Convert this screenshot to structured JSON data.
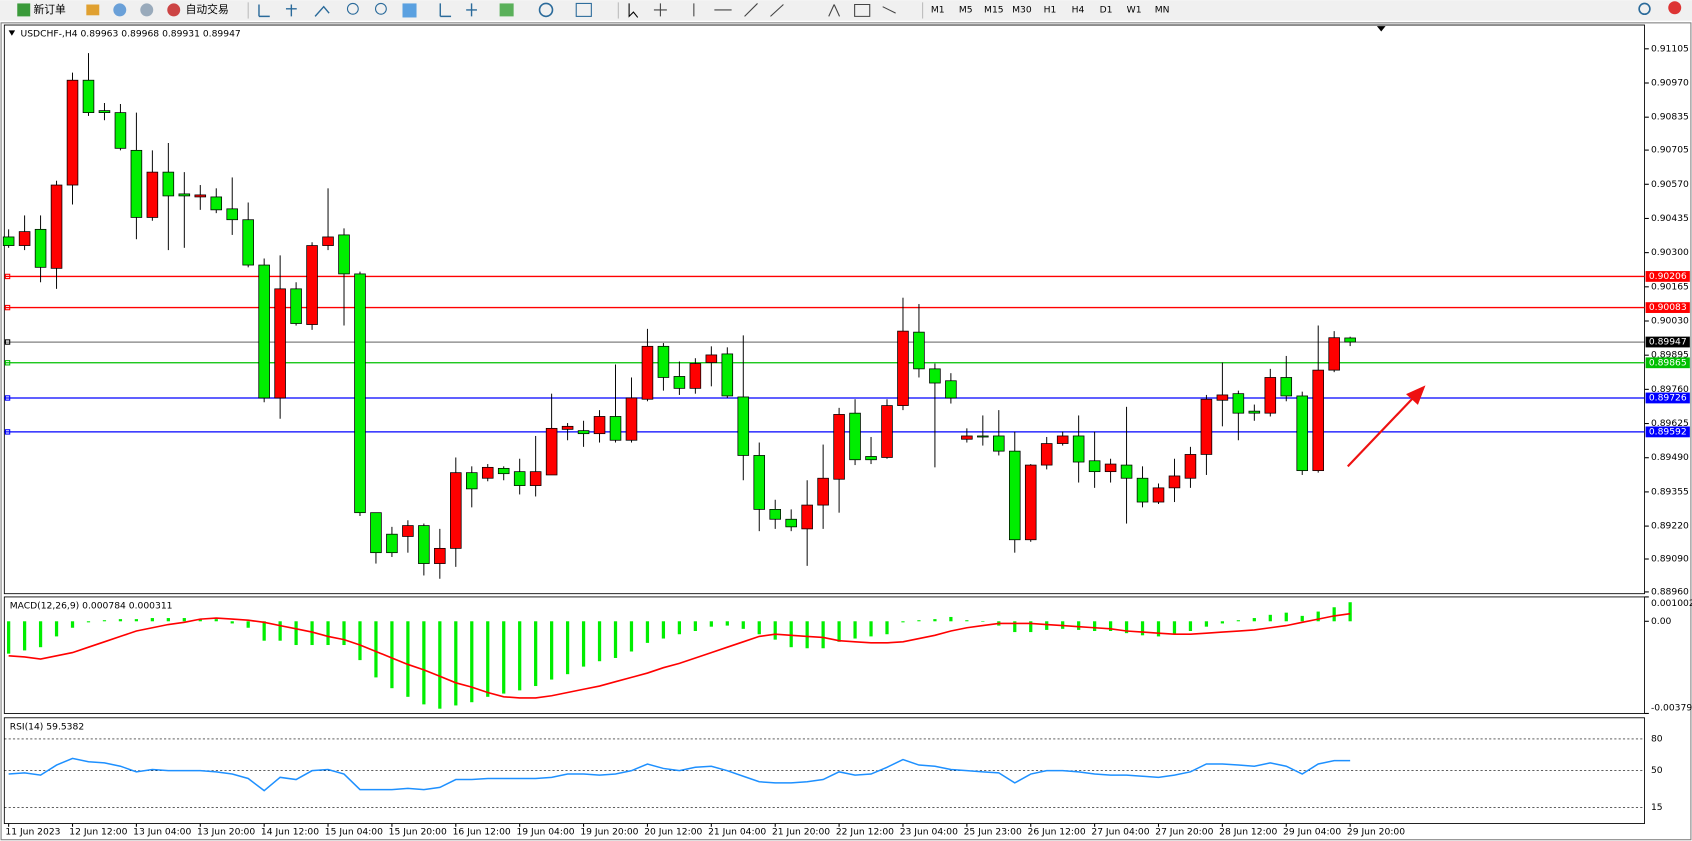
{
  "toolbar": {
    "buttons": [
      "新订单",
      "自动交易"
    ],
    "timeframes": [
      "M1",
      "M5",
      "M15",
      "M30",
      "H1",
      "H4",
      "D1",
      "W1",
      "MN"
    ]
  },
  "chart_data": [
    {
      "type": "candlestick",
      "title": "USDCHF-,H4",
      "categories": [
        "11 Jun 2023",
        null,
        null,
        null,
        "12 Jun 12:00",
        null,
        null,
        null,
        "13 Jun 04:00",
        null,
        null,
        null,
        "13 Jun 20:00",
        null,
        null,
        null,
        "14 Jun 12:00",
        null,
        null,
        null,
        "15 Jun 04:00",
        null,
        null,
        null,
        "15 Jun 20:00",
        null,
        null,
        null,
        "16 Jun 12:00",
        null,
        null,
        null,
        "19 Jun 04:00",
        null,
        null,
        null,
        "19 Jun 20:00",
        null,
        null,
        null,
        "20 Jun 12:00",
        null,
        null,
        null,
        "21 Jun 04:00",
        null,
        null,
        null,
        "21 Jun 20:00",
        null,
        null,
        null,
        "22 Jun 12:00",
        null,
        null,
        null,
        "23 Jun 04:00",
        null,
        null,
        null,
        "25 Jun 23:00",
        null,
        null,
        null,
        "26 Jun 12:00",
        null,
        null,
        null,
        "27 Jun 04:00",
        null,
        null,
        null,
        "27 Jun 20:00",
        null,
        null,
        null,
        "28 Jun 12:00",
        null,
        null,
        null,
        "29 Jun 04:00",
        null,
        null,
        null,
        "29 Jun 20:00"
      ],
      "open": [
        0.90362,
        0.90328,
        0.90392,
        0.90238,
        0.90567,
        0.90981,
        0.90861,
        0.90853,
        0.90704,
        0.90439,
        0.90618,
        0.90532,
        0.9052,
        0.9052,
        0.90473,
        0.9043,
        0.90251,
        0.89726,
        0.90157,
        0.90016,
        0.90328,
        0.9037,
        0.90216,
        0.89273,
        0.89188,
        0.89179,
        0.89222,
        0.89072,
        0.89132,
        0.89431,
        0.89409,
        0.89448,
        0.89435,
        0.8938,
        0.89422,
        0.89602,
        0.89597,
        0.89585,
        0.89653,
        0.89559,
        0.89721,
        0.8993,
        0.89811,
        0.89764,
        0.89866,
        0.899,
        0.8973,
        0.89499,
        0.89286,
        0.89247,
        0.89209,
        0.89303,
        0.89405,
        0.89666,
        0.89495,
        0.89491,
        0.89696,
        0.89986,
        0.89841,
        0.89794,
        0.89563,
        0.89576,
        0.89576,
        0.89516,
        0.89166,
        0.89461,
        0.89546,
        0.89576,
        0.89478,
        0.89435,
        0.89461,
        0.89409,
        0.89315,
        0.89371,
        0.89409,
        0.89503,
        0.89717,
        0.89743,
        0.89674,
        0.89666,
        0.89807,
        0.89734,
        0.89439,
        0.89836,
        0.89963
      ],
      "high": [
        0.90392,
        0.90447,
        0.90447,
        0.90584,
        0.91011,
        0.91088,
        0.90891,
        0.90887,
        0.90853,
        0.90704,
        0.90733,
        0.90618,
        0.90567,
        0.90554,
        0.90597,
        0.90498,
        0.90277,
        0.90289,
        0.90183,
        0.90341,
        0.90554,
        0.90396,
        0.90225,
        0.89273,
        0.89217,
        0.89243,
        0.8923,
        0.89209,
        0.89491,
        0.89456,
        0.89465,
        0.89456,
        0.89486,
        0.89576,
        0.89743,
        0.89627,
        0.89636,
        0.89678,
        0.89858,
        0.89807,
        0.89999,
        0.89943,
        0.8987,
        0.89883,
        0.8993,
        0.89926,
        0.89973,
        0.8955,
        0.89324,
        0.89286,
        0.89401,
        0.89542,
        0.89687,
        0.89721,
        0.89572,
        0.89721,
        0.90122,
        0.90097,
        0.89862,
        0.89824,
        0.89606,
        0.89657,
        0.89678,
        0.89593,
        0.89465,
        0.89572,
        0.89593,
        0.89657,
        0.89593,
        0.89486,
        0.89691,
        0.89456,
        0.89388,
        0.89486,
        0.89533,
        0.89738,
        0.89866,
        0.89755,
        0.897,
        0.89841,
        0.89892,
        0.89751,
        0.90012,
        0.8999,
        0.89968
      ],
      "low": [
        0.90319,
        0.9031,
        0.90183,
        0.90157,
        0.9049,
        0.9084,
        0.90823,
        0.90704,
        0.90353,
        0.90426,
        0.9031,
        0.90319,
        0.90469,
        0.90456,
        0.9037,
        0.90242,
        0.89709,
        0.89644,
        0.90012,
        0.89995,
        0.9031,
        0.90012,
        0.8926,
        0.89072,
        0.89098,
        0.89115,
        0.89025,
        0.89012,
        0.89059,
        0.89294,
        0.89397,
        0.89401,
        0.89345,
        0.89337,
        0.89422,
        0.89559,
        0.89533,
        0.8955,
        0.8955,
        0.8955,
        0.89713,
        0.89755,
        0.89738,
        0.89743,
        0.89772,
        0.89726,
        0.89401,
        0.892,
        0.89209,
        0.892,
        0.89063,
        0.89209,
        0.89273,
        0.89461,
        0.89465,
        0.89486,
        0.89678,
        0.89807,
        0.89452,
        0.89704,
        0.8955,
        0.89538,
        0.89499,
        0.89115,
        0.89158,
        0.89444,
        0.89538,
        0.89392,
        0.89371,
        0.89392,
        0.8923,
        0.89294,
        0.89307,
        0.89315,
        0.89371,
        0.89422,
        0.89614,
        0.89559,
        0.89636,
        0.89653,
        0.89713,
        0.89422,
        0.89431,
        0.89828,
        0.89931
      ],
      "close": [
        0.90328,
        0.90383,
        0.90242,
        0.90567,
        0.90981,
        0.90853,
        0.90853,
        0.90712,
        0.90439,
        0.90618,
        0.90524,
        0.90524,
        0.90528,
        0.90469,
        0.9043,
        0.90251,
        0.89726,
        0.90157,
        0.9002,
        0.90328,
        0.90362,
        0.90216,
        0.89273,
        0.89115,
        0.89115,
        0.89222,
        0.89072,
        0.89132,
        0.89431,
        0.89367,
        0.89452,
        0.89427,
        0.8938,
        0.89435,
        0.89606,
        0.89614,
        0.89585,
        0.89653,
        0.89559,
        0.89726,
        0.8993,
        0.89807,
        0.89764,
        0.89862,
        0.89896,
        0.89734,
        0.89499,
        0.89286,
        0.89247,
        0.89217,
        0.89303,
        0.89409,
        0.89661,
        0.89482,
        0.89482,
        0.89696,
        0.8999,
        0.89841,
        0.89785,
        0.89726,
        0.89576,
        0.89572,
        0.89516,
        0.89166,
        0.89461,
        0.89546,
        0.89576,
        0.89473,
        0.89435,
        0.89465,
        0.89409,
        0.89315,
        0.89371,
        0.89418,
        0.89503,
        0.89721,
        0.89738,
        0.89666,
        0.89666,
        0.89807,
        0.89734,
        0.89439,
        0.89836,
        0.89964,
        0.89947
      ],
      "up_color": "#ff0000",
      "down_color": "#00ee00",
      "ylim": [
        0.88953,
        0.91199
      ],
      "yticks": [
        0.91105,
        {
          "value": 0.9097,
          "label": "0.90970"
        },
        0.90835,
        0.90705,
        {
          "value": 0.9057,
          "label": "0.90570"
        },
        0.90435,
        {
          "value": 0.903,
          "label": "0.90300"
        },
        0.90165,
        {
          "value": 0.9003,
          "label": "0.90030"
        },
        0.89895,
        {
          "value": 0.8976,
          "label": "0.89760"
        },
        0.89625,
        {
          "value": 0.8949,
          "label": "0.89490"
        },
        0.89355,
        {
          "value": 0.8922,
          "label": "0.89220"
        },
        {
          "value": 0.8909,
          "label": "0.89090"
        },
        {
          "value": 0.8896,
          "label": "0.88960"
        }
      ],
      "levels": [
        {
          "value": 0.90206,
          "color": "#ff0000"
        },
        {
          "value": 0.90083,
          "color": "#ff0000"
        },
        {
          "value": 0.89947,
          "color": "#000000"
        },
        {
          "value": 0.89865,
          "color": "#00c000"
        },
        {
          "value": 0.89726,
          "color": "#0000ff"
        },
        {
          "value": 0.89592,
          "color": "#0000ff"
        }
      ],
      "grid": false
    },
    {
      "type": "macd",
      "title": "MACD(12,26,9)",
      "histogram": {
        "color": "#00ee00",
        "values": [
          -0.001332,
          -0.001199,
          -0.001066,
          -0.000622,
          -0.000266,
          -4.4e-05,
          4.4e-05,
          8.9e-05,
          8.9e-05,
          0.000133,
          0.000133,
          0.000133,
          8.9e-05,
          8.9e-05,
          -8.9e-05,
          -0.000266,
          -0.000799,
          -0.000799,
          -0.000977,
          -0.000977,
          -0.000977,
          -0.000977,
          -0.001598,
          -0.002309,
          -0.002753,
          -0.003108,
          -0.003419,
          -0.003596,
          -0.003463,
          -0.00333,
          -0.003108,
          -0.002975,
          -0.002842,
          -0.002664,
          -0.002398,
          -0.002176,
          -0.001865,
          -0.001643,
          -0.00151,
          -0.001243,
          -0.000888,
          -0.00071,
          -0.000533,
          -0.0004,
          -0.000222,
          -0.000178,
          -0.000311,
          -0.000533,
          -0.000755,
          -0.001066,
          -0.00111,
          -0.00111,
          -0.000844,
          -0.00071,
          -0.000622,
          -0.000533,
          -4.4e-05,
          4.4e-05,
          8.9e-05,
          0.000178,
          4.4e-05,
          0,
          -0.000178,
          -0.000444,
          -0.000444,
          -0.000355,
          -0.000311,
          -0.000355,
          -0.0004,
          -0.0004,
          -0.000488,
          -0.000577,
          -0.000622,
          -0.000533,
          -0.0004,
          -0.000222,
          -8.9e-05,
          4.4e-05,
          0.000133,
          0.000266,
          0.000355,
          0.000222,
          0.0004,
          0.000577,
          0.000784
        ]
      },
      "signal": {
        "color": "#ff0000",
        "values": [
          -0.001421,
          -0.001465,
          -0.001554,
          -0.001421,
          -0.001288,
          -0.001066,
          -0.000844,
          -0.000622,
          -0.0004,
          -0.000266,
          -0.000133,
          -4.4e-05,
          8.9e-05,
          0.000133,
          8.9e-05,
          4.4e-05,
          -4.4e-05,
          -0.000178,
          -0.000311,
          -0.000444,
          -0.000622,
          -0.000755,
          -0.000977,
          -0.001243,
          -0.00151,
          -0.001776,
          -0.001998,
          -0.002264,
          -0.002531,
          -0.002708,
          -0.00293,
          -0.003108,
          -0.003152,
          -0.003152,
          -0.003064,
          -0.00293,
          -0.002797,
          -0.002664,
          -0.002486,
          -0.002309,
          -0.002131,
          -0.001909,
          -0.001732,
          -0.00151,
          -0.001288,
          -0.001066,
          -0.000844,
          -0.000622,
          -0.000533,
          -0.000577,
          -0.000622,
          -0.000666,
          -0.000799,
          -0.000844,
          -0.000888,
          -0.000888,
          -0.000844,
          -0.00071,
          -0.000577,
          -0.0004,
          -0.000266,
          -0.000178,
          -8.9e-05,
          -8.9e-05,
          -8.9e-05,
          -0.000133,
          -0.000178,
          -0.000222,
          -0.000266,
          -0.000311,
          -0.0004,
          -0.000444,
          -0.000488,
          -0.000533,
          -0.000533,
          -0.000488,
          -0.000444,
          -0.0004,
          -0.000355,
          -0.000266,
          -0.000178,
          -4.4e-05,
          8.9e-05,
          0.000222,
          0.000311
        ]
      },
      "ylim": [
        -0.003793,
        0.001002
      ],
      "yticks": [
        0.001002,
        {
          "value": 0,
          "label": "0.00"
        },
        -0.003793
      ]
    },
    {
      "type": "line",
      "title": "RSI(14)",
      "color": "#1e90ff",
      "values": [
        46.8,
        47.9,
        45.8,
        55.3,
        61.6,
        58.4,
        57.4,
        54.2,
        48.9,
        51.1,
        50,
        50,
        50,
        48.9,
        46.8,
        42.6,
        31.1,
        43.7,
        41.6,
        50,
        51.1,
        46.8,
        32.1,
        32.1,
        32.1,
        33.2,
        32.1,
        34.2,
        41.6,
        41.6,
        42.6,
        42.6,
        42.6,
        42.6,
        43.7,
        46.8,
        46.8,
        45.8,
        46.8,
        50,
        56.3,
        52.1,
        50,
        53.2,
        54.2,
        50,
        44.7,
        39.5,
        38.4,
        38.4,
        39.5,
        41.6,
        48.9,
        45.8,
        46.8,
        53.2,
        60.5,
        55.3,
        54.2,
        51.1,
        50,
        48.9,
        47.9,
        38.4,
        46.8,
        50,
        50,
        48.9,
        46.8,
        45.8,
        45.8,
        44.7,
        43.7,
        45.8,
        48.9,
        56.3,
        56.3,
        55.3,
        54.2,
        57.4,
        54.2,
        46.8,
        56.3,
        59.5,
        59.5382
      ],
      "ylim": [
        0,
        100
      ],
      "yticks": [
        15,
        50,
        80
      ]
    }
  ]
}
